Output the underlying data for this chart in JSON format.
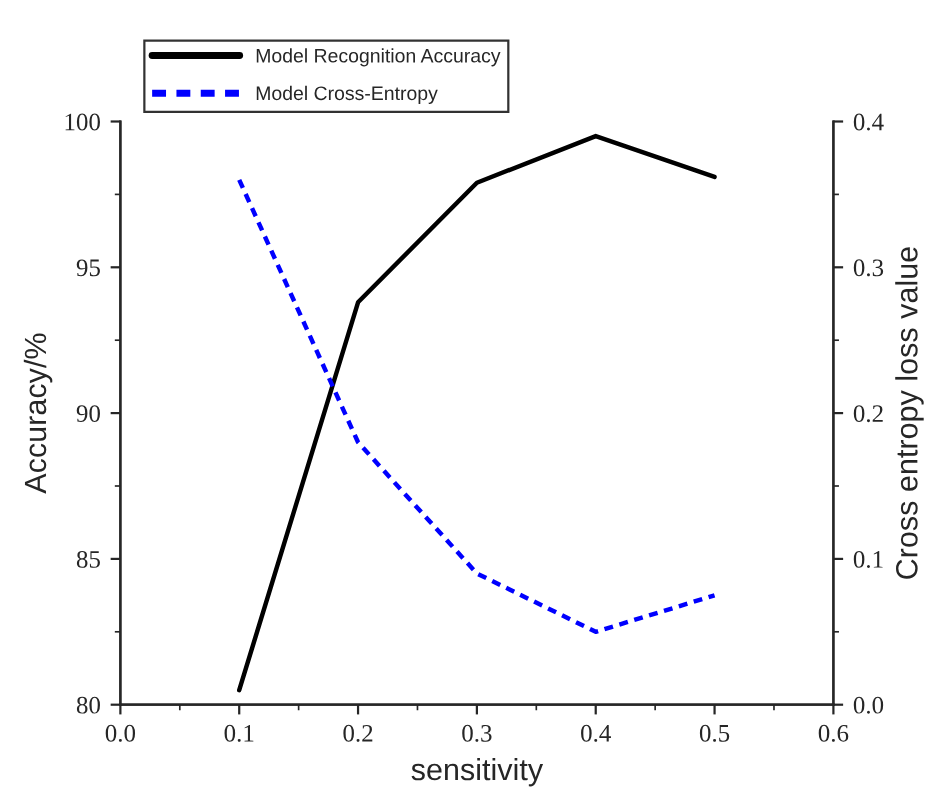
{
  "chart_data": {
    "type": "line",
    "xlabel": "sensitivity",
    "ylabel": "Accuracy/%",
    "y2label": "Cross entropy loss value",
    "x": [
      0.1,
      0.2,
      0.3,
      0.4,
      0.5
    ],
    "series": [
      {
        "name": "Model Recognition Accuracy",
        "color": "#000000",
        "values": [
          80.5,
          93.8,
          97.9,
          99.5,
          98.1
        ],
        "line_style": "solid"
      },
      {
        "name": "Model Cross-Entropy",
        "color": "#0000ff",
        "values": [
          0.36,
          0.18,
          0.09,
          0.05,
          0.075
        ],
        "axis": "y2",
        "line_style": "dashed"
      }
    ],
    "xlim": [
      0.0,
      0.6
    ],
    "xticks": [
      {
        "value": 0.0,
        "label": "0.0"
      },
      0.1,
      0.2,
      0.3,
      0.4,
      0.5,
      0.6
    ],
    "ylim": [
      80,
      100
    ],
    "yticks": [
      80,
      85,
      90,
      95,
      100
    ],
    "y2lim": [
      0.0,
      0.4
    ],
    "y2ticks": [
      {
        "value": 0.0,
        "label": "0.0"
      },
      0.1,
      0.2,
      0.3,
      0.4
    ],
    "grid": false,
    "legend": "top",
    "marker": "none"
  }
}
